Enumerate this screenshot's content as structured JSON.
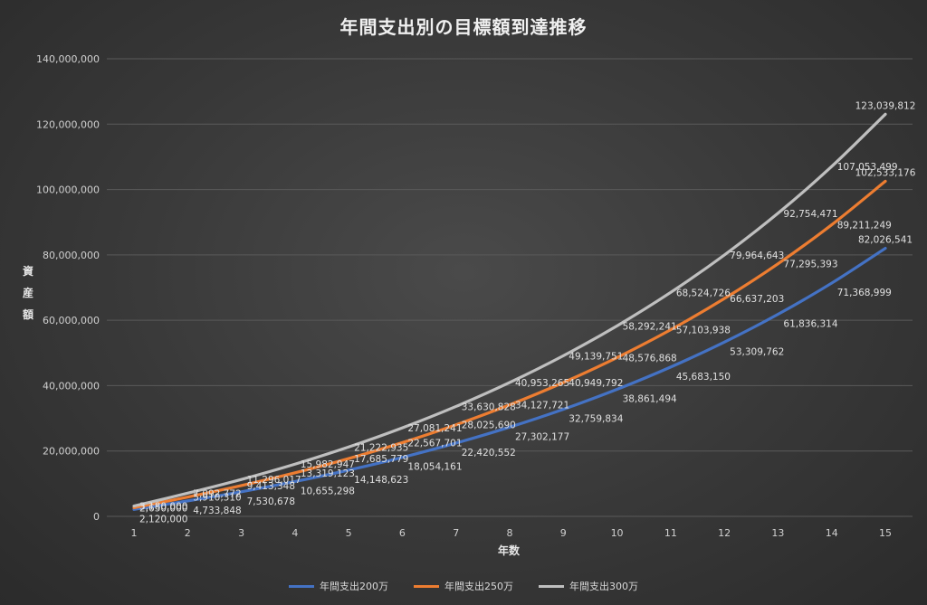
{
  "chart_data": {
    "type": "line",
    "title": "年間支出別の目標額到達推移",
    "xlabel": "年数",
    "ylabel": "資産額",
    "x": [
      1,
      2,
      3,
      4,
      5,
      6,
      7,
      8,
      9,
      10,
      11,
      12,
      13,
      14,
      15
    ],
    "ylim": [
      0,
      140000000
    ],
    "yticks": [
      0,
      20000000,
      40000000,
      60000000,
      80000000,
      100000000,
      120000000,
      140000000
    ],
    "ytick_labels": [
      "0",
      "20,000,000",
      "40,000,000",
      "60,000,000",
      "80,000,000",
      "100,000,000",
      "120,000,000",
      "140,000,000"
    ],
    "grid": true,
    "legend_position": "bottom",
    "series": [
      {
        "name": "年間支出200万",
        "color": "#4472c4",
        "values": [
          2120000,
          4733848,
          7530678,
          10655298,
          14148623,
          18054161,
          22420552,
          27302177,
          32759834,
          38861494,
          45683150,
          53309762,
          61836314,
          71368999,
          82026541
        ],
        "labels": [
          "2,120,000",
          "4,733,848",
          "7,530,678",
          "10,655,298",
          "14,148,623",
          "18,054,161",
          "22,420,552",
          "27,302,177",
          "32,759,834",
          "38,861,494",
          "45,683,150",
          "53,309,762",
          "61,836,314",
          "71,368,999",
          "82,026,541"
        ]
      },
      {
        "name": "年間支出250万",
        "color": "#ed7d31",
        "values": [
          2650000,
          5910310,
          9413348,
          13319123,
          17685779,
          22567701,
          28025690,
          34127721,
          40949792,
          48576868,
          57103938,
          66637203,
          77295393,
          89211249,
          102533176
        ],
        "labels": [
          "2,650,000",
          "5,910,310",
          "9,413,348",
          "13,319,123",
          "17,685,779",
          "22,567,701",
          "28,025,690",
          "34,127,721",
          "40,949,792",
          "48,576,868",
          "57,103,938",
          "66,637,203",
          "77,295,393",
          "89,211,249",
          "102,533,176"
        ]
      },
      {
        "name": "年間支出300万",
        "color": "#bfbfbf",
        "values": [
          3180000,
          7092772,
          11296017,
          15982947,
          21222935,
          27081241,
          33630828,
          40953265,
          49139751,
          58292241,
          68524726,
          79964643,
          92754471,
          107053499,
          123039812
        ],
        "labels": [
          "3,180,000",
          "7,092,772",
          "11,296,017",
          "15,982,947",
          "21,222,935",
          "27,081,241",
          "33,630,828",
          "40,953,265",
          "49,139,751",
          "58,292,241",
          "68,524,726",
          "79,964,643",
          "92,754,471",
          "107,053,499",
          "123,039,812"
        ]
      }
    ]
  }
}
